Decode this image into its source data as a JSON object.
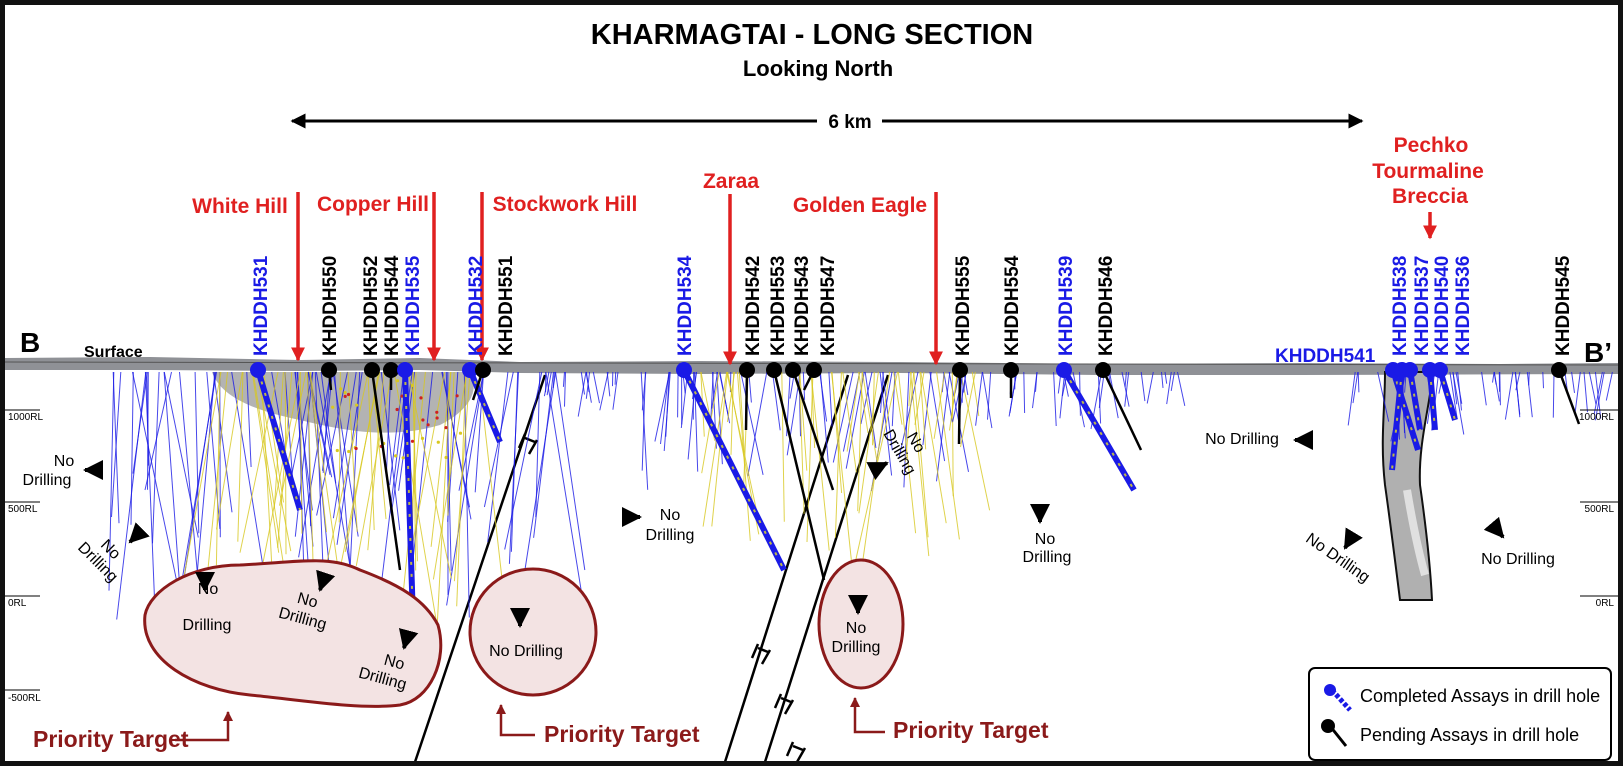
{
  "title": "KHARMAGTAI - LONG SECTION",
  "subtitle": "Looking North",
  "scale_label": "6 km",
  "endpoints": {
    "left": "B",
    "right": "B’"
  },
  "surface_label": "Surface",
  "rl_labels": [
    "1000RL",
    "500RL",
    "0RL",
    "-500RL"
  ],
  "prospects": [
    "White Hill",
    "Copper Hill",
    "Stockwork Hill",
    "Zaraa",
    "Golden Eagle",
    "Pechko",
    "Tourmaline",
    "Breccia"
  ],
  "holes": [
    {
      "name": "KHDDH531",
      "status": "completed"
    },
    {
      "name": "KHDDH550",
      "status": "pending"
    },
    {
      "name": "KHDDH552",
      "status": "pending"
    },
    {
      "name": "KHDDH544",
      "status": "pending"
    },
    {
      "name": "KHDDH535",
      "status": "completed"
    },
    {
      "name": "KHDDH532",
      "status": "completed"
    },
    {
      "name": "KHDDH551",
      "status": "pending"
    },
    {
      "name": "KHDDH534",
      "status": "completed"
    },
    {
      "name": "KHDDH542",
      "status": "pending"
    },
    {
      "name": "KHDDH553",
      "status": "pending"
    },
    {
      "name": "KHDDH543",
      "status": "pending"
    },
    {
      "name": "KHDDH547",
      "status": "pending"
    },
    {
      "name": "KHDDH555",
      "status": "pending"
    },
    {
      "name": "KHDDH554",
      "status": "pending"
    },
    {
      "name": "KHDDH539",
      "status": "completed"
    },
    {
      "name": "KHDDH546",
      "status": "pending"
    },
    {
      "name": "KHDDH541",
      "status": "completed"
    },
    {
      "name": "KHDDH538",
      "status": "completed"
    },
    {
      "name": "KHDDH537",
      "status": "completed"
    },
    {
      "name": "KHDDH540",
      "status": "completed"
    },
    {
      "name": "KHDDH536",
      "status": "completed"
    },
    {
      "name": "KHDDH545",
      "status": "pending"
    }
  ],
  "no_drilling": {
    "line1": "No",
    "line2": "Drilling",
    "single": "No Drilling"
  },
  "priority_label": "Priority Target",
  "legend": {
    "completed": "Completed Assays in drill hole",
    "pending": "Pending Assays in drill hole"
  },
  "colors": {
    "prospect_red": "#e02020",
    "completed_blue": "#1a1ae6",
    "pending_black": "#000000",
    "target_fill": "#f3e3e3",
    "target_stroke": "#8b1a1a",
    "assay_yellow": "#e8e020"
  }
}
